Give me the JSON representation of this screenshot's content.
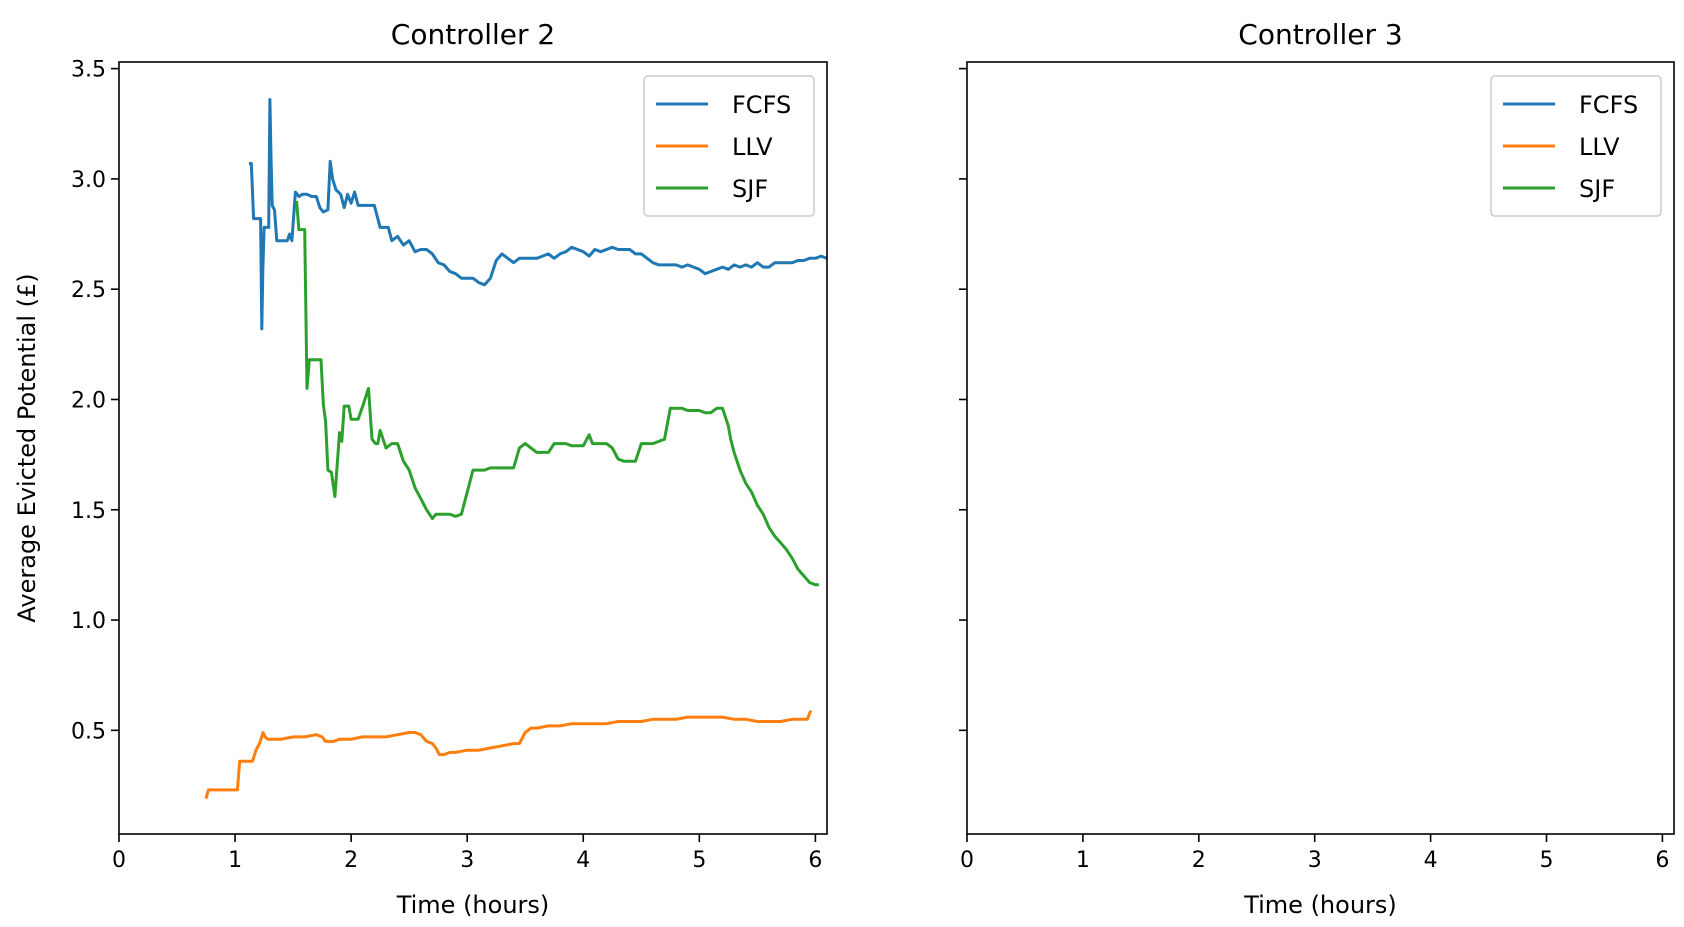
{
  "chart_data": [
    {
      "type": "line",
      "title": "Controller 2",
      "xlabel": "Time (hours)",
      "ylabel": "Average Evicted Potential (£)",
      "xlim": [
        0,
        6.1
      ],
      "ylim": [
        0.03,
        3.53
      ],
      "xticks": [
        0,
        1,
        2,
        3,
        4,
        5,
        6
      ],
      "yticks": [
        0.5,
        1.0,
        1.5,
        2.0,
        2.5,
        3.0,
        3.5
      ],
      "xtick_labels": [
        "0",
        "1",
        "2",
        "3",
        "4",
        "5",
        "6"
      ],
      "ytick_labels": [
        "0.5",
        "1.0",
        "1.5",
        "2.0",
        "2.5",
        "3.0",
        "3.5"
      ],
      "grid": false,
      "legend": "top-right",
      "series": [
        {
          "name": "FCFS",
          "color": "#1f77b4",
          "x": [
            1.12,
            1.14,
            1.16,
            1.19,
            1.22,
            1.23,
            1.24,
            1.25,
            1.27,
            1.29,
            1.3,
            1.31,
            1.32,
            1.34,
            1.36,
            1.38,
            1.45,
            1.47,
            1.49,
            1.52,
            1.55,
            1.58,
            1.62,
            1.66,
            1.7,
            1.73,
            1.76,
            1.8,
            1.82,
            1.84,
            1.87,
            1.91,
            1.94,
            1.97,
            2.0,
            2.03,
            2.06,
            2.1,
            2.15,
            2.2,
            2.25,
            2.32,
            2.35,
            2.4,
            2.45,
            2.5,
            2.55,
            2.6,
            2.65,
            2.7,
            2.75,
            2.8,
            2.85,
            2.9,
            2.95,
            3.0,
            3.05,
            3.1,
            3.15,
            3.2,
            3.25,
            3.3,
            3.35,
            3.4,
            3.45,
            3.5,
            3.55,
            3.6,
            3.65,
            3.7,
            3.75,
            3.8,
            3.85,
            3.9,
            3.95,
            4.0,
            4.05,
            4.1,
            4.15,
            4.2,
            4.25,
            4.3,
            4.35,
            4.4,
            4.45,
            4.5,
            4.55,
            4.6,
            4.65,
            4.7,
            4.75,
            4.8,
            4.85,
            4.9,
            4.95,
            5.0,
            5.05,
            5.1,
            5.15,
            5.2,
            5.25,
            5.3,
            5.35,
            5.4,
            5.45,
            5.5,
            5.55,
            5.6,
            5.65,
            5.7,
            5.75,
            5.8,
            5.85,
            5.9,
            5.95,
            6.0,
            6.05,
            6.1
          ],
          "y": [
            3.07,
            3.07,
            2.82,
            2.82,
            2.82,
            2.32,
            2.6,
            2.78,
            2.78,
            2.78,
            3.36,
            3.1,
            2.88,
            2.86,
            2.72,
            2.72,
            2.72,
            2.75,
            2.72,
            2.94,
            2.92,
            2.93,
            2.93,
            2.92,
            2.92,
            2.87,
            2.85,
            2.86,
            3.08,
            3.0,
            2.95,
            2.93,
            2.87,
            2.93,
            2.89,
            2.94,
            2.88,
            2.88,
            2.88,
            2.88,
            2.78,
            2.78,
            2.72,
            2.74,
            2.7,
            2.72,
            2.67,
            2.68,
            2.68,
            2.66,
            2.62,
            2.61,
            2.58,
            2.57,
            2.55,
            2.55,
            2.55,
            2.53,
            2.52,
            2.55,
            2.63,
            2.66,
            2.64,
            2.62,
            2.64,
            2.64,
            2.64,
            2.64,
            2.65,
            2.66,
            2.64,
            2.66,
            2.67,
            2.69,
            2.68,
            2.67,
            2.65,
            2.68,
            2.67,
            2.68,
            2.69,
            2.68,
            2.68,
            2.68,
            2.66,
            2.66,
            2.64,
            2.62,
            2.61,
            2.61,
            2.61,
            2.61,
            2.6,
            2.61,
            2.6,
            2.59,
            2.57,
            2.58,
            2.59,
            2.6,
            2.59,
            2.61,
            2.6,
            2.61,
            2.6,
            2.62,
            2.6,
            2.6,
            2.62,
            2.62,
            2.62,
            2.62,
            2.63,
            2.63,
            2.64,
            2.64,
            2.65,
            2.64
          ]
        },
        {
          "name": "LLV",
          "color": "#ff7f0e",
          "x": [
            0.75,
            0.77,
            0.8,
            0.9,
            1.0,
            1.02,
            1.04,
            1.08,
            1.15,
            1.18,
            1.21,
            1.23,
            1.24,
            1.26,
            1.28,
            1.3,
            1.4,
            1.5,
            1.6,
            1.7,
            1.75,
            1.78,
            1.8,
            1.85,
            1.9,
            2.0,
            2.1,
            2.2,
            2.3,
            2.4,
            2.5,
            2.55,
            2.6,
            2.65,
            2.7,
            2.73,
            2.76,
            2.8,
            2.85,
            2.9,
            3.0,
            3.1,
            3.2,
            3.3,
            3.4,
            3.45,
            3.5,
            3.55,
            3.6,
            3.7,
            3.8,
            3.9,
            4.0,
            4.1,
            4.2,
            4.3,
            4.4,
            4.5,
            4.6,
            4.7,
            4.8,
            4.9,
            5.0,
            5.1,
            5.2,
            5.3,
            5.4,
            5.5,
            5.6,
            5.7,
            5.8,
            5.9,
            5.93,
            5.96
          ],
          "y": [
            0.19,
            0.23,
            0.23,
            0.23,
            0.23,
            0.23,
            0.36,
            0.36,
            0.36,
            0.41,
            0.44,
            0.47,
            0.49,
            0.47,
            0.46,
            0.46,
            0.46,
            0.47,
            0.47,
            0.48,
            0.47,
            0.45,
            0.45,
            0.45,
            0.46,
            0.46,
            0.47,
            0.47,
            0.47,
            0.48,
            0.49,
            0.49,
            0.48,
            0.45,
            0.44,
            0.42,
            0.39,
            0.39,
            0.4,
            0.4,
            0.41,
            0.41,
            0.42,
            0.43,
            0.44,
            0.44,
            0.49,
            0.51,
            0.51,
            0.52,
            0.52,
            0.53,
            0.53,
            0.53,
            0.53,
            0.54,
            0.54,
            0.54,
            0.55,
            0.55,
            0.55,
            0.56,
            0.56,
            0.56,
            0.56,
            0.55,
            0.55,
            0.54,
            0.54,
            0.54,
            0.55,
            0.55,
            0.55,
            0.59
          ]
        },
        {
          "name": "SJF",
          "color": "#2ca02c",
          "x": [
            1.53,
            1.55,
            1.57,
            1.6,
            1.62,
            1.64,
            1.65,
            1.67,
            1.7,
            1.74,
            1.76,
            1.78,
            1.8,
            1.83,
            1.86,
            1.9,
            1.92,
            1.94,
            1.96,
            1.98,
            2.0,
            2.03,
            2.06,
            2.1,
            2.15,
            2.18,
            2.21,
            2.23,
            2.25,
            2.3,
            2.35,
            2.37,
            2.4,
            2.45,
            2.5,
            2.55,
            2.6,
            2.65,
            2.7,
            2.73,
            2.75,
            2.78,
            2.81,
            2.85,
            2.9,
            2.95,
            3.0,
            3.05,
            3.1,
            3.15,
            3.2,
            3.25,
            3.3,
            3.35,
            3.4,
            3.45,
            3.5,
            3.55,
            3.6,
            3.65,
            3.7,
            3.75,
            3.8,
            3.85,
            3.9,
            3.95,
            4.0,
            4.05,
            4.08,
            4.1,
            4.15,
            4.2,
            4.25,
            4.3,
            4.35,
            4.4,
            4.45,
            4.5,
            4.55,
            4.6,
            4.65,
            4.7,
            4.75,
            4.8,
            4.85,
            4.9,
            4.95,
            5.0,
            5.05,
            5.1,
            5.15,
            5.2,
            5.25,
            5.27,
            5.3,
            5.35,
            5.4,
            5.45,
            5.5,
            5.55,
            5.6,
            5.65,
            5.7,
            5.75,
            5.8,
            5.85,
            5.9,
            5.95,
            6.0,
            6.03
          ],
          "y": [
            2.9,
            2.77,
            2.77,
            2.77,
            2.05,
            2.18,
            2.18,
            2.18,
            2.18,
            2.18,
            1.98,
            1.9,
            1.68,
            1.67,
            1.56,
            1.85,
            1.81,
            1.97,
            1.97,
            1.97,
            1.91,
            1.91,
            1.91,
            1.97,
            2.05,
            1.82,
            1.8,
            1.8,
            1.86,
            1.78,
            1.8,
            1.8,
            1.8,
            1.72,
            1.68,
            1.6,
            1.55,
            1.5,
            1.46,
            1.48,
            1.48,
            1.48,
            1.48,
            1.48,
            1.47,
            1.48,
            1.58,
            1.68,
            1.68,
            1.68,
            1.69,
            1.69,
            1.69,
            1.69,
            1.69,
            1.78,
            1.8,
            1.78,
            1.76,
            1.76,
            1.76,
            1.8,
            1.8,
            1.8,
            1.79,
            1.79,
            1.79,
            1.84,
            1.8,
            1.8,
            1.8,
            1.8,
            1.78,
            1.73,
            1.72,
            1.72,
            1.72,
            1.8,
            1.8,
            1.8,
            1.81,
            1.82,
            1.96,
            1.96,
            1.96,
            1.95,
            1.95,
            1.95,
            1.94,
            1.94,
            1.96,
            1.96,
            1.88,
            1.82,
            1.76,
            1.68,
            1.62,
            1.58,
            1.52,
            1.48,
            1.42,
            1.38,
            1.35,
            1.32,
            1.28,
            1.23,
            1.2,
            1.17,
            1.16,
            1.16
          ]
        }
      ]
    },
    {
      "type": "line",
      "title": "Controller 3",
      "xlabel": "Time (hours)",
      "ylabel": "",
      "xlim": [
        0,
        6.1
      ],
      "ylim": [
        0.03,
        3.53
      ],
      "xticks": [
        0,
        1,
        2,
        3,
        4,
        5,
        6
      ],
      "yticks": [
        0.5,
        1.0,
        1.5,
        2.0,
        2.5,
        3.0,
        3.5
      ],
      "xtick_labels": [
        "0",
        "1",
        "2",
        "3",
        "4",
        "5",
        "6"
      ],
      "ytick_labels": [],
      "grid": false,
      "legend": "top-right",
      "series": [
        {
          "name": "FCFS",
          "color": "#1f77b4",
          "x": [],
          "y": []
        },
        {
          "name": "LLV",
          "color": "#ff7f0e",
          "x": [],
          "y": []
        },
        {
          "name": "SJF",
          "color": "#2ca02c",
          "x": [],
          "y": []
        }
      ]
    }
  ]
}
